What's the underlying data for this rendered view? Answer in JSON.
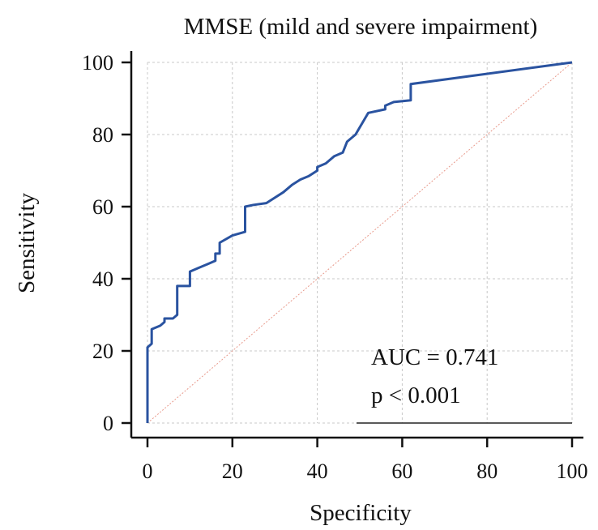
{
  "chart_data": {
    "type": "line",
    "title": "MMSE (mild and severe impairment)",
    "xlabel": "Specificity",
    "ylabel": "Sensitivity",
    "xlim": [
      0,
      100
    ],
    "ylim": [
      0,
      100
    ],
    "xticks": [
      0,
      20,
      40,
      60,
      80,
      100
    ],
    "yticks": [
      0,
      20,
      40,
      60,
      80,
      100
    ],
    "grid": true,
    "series": [
      {
        "name": "ROC curve",
        "color": "#2a53a0",
        "points": [
          [
            0,
            0
          ],
          [
            0,
            21
          ],
          [
            1,
            22
          ],
          [
            1,
            26
          ],
          [
            3,
            27
          ],
          [
            4,
            28
          ],
          [
            4,
            29
          ],
          [
            5,
            29
          ],
          [
            6,
            29
          ],
          [
            7,
            30
          ],
          [
            7,
            38
          ],
          [
            10,
            38
          ],
          [
            10,
            42
          ],
          [
            12,
            43
          ],
          [
            14,
            44
          ],
          [
            16,
            45
          ],
          [
            16,
            47
          ],
          [
            17,
            47
          ],
          [
            17,
            50
          ],
          [
            20,
            52
          ],
          [
            23,
            53
          ],
          [
            23,
            60
          ],
          [
            25,
            60.5
          ],
          [
            28,
            61
          ],
          [
            32,
            64
          ],
          [
            34,
            66
          ],
          [
            36,
            67.5
          ],
          [
            38,
            68.5
          ],
          [
            40,
            70
          ],
          [
            40,
            71
          ],
          [
            42,
            72
          ],
          [
            44,
            74
          ],
          [
            45,
            74.5
          ],
          [
            46,
            75
          ],
          [
            47,
            78
          ],
          [
            49,
            80
          ],
          [
            50,
            82
          ],
          [
            52,
            86
          ],
          [
            56,
            87
          ],
          [
            56,
            88
          ],
          [
            58,
            89
          ],
          [
            62,
            89.5
          ],
          [
            62,
            94
          ],
          [
            100,
            100
          ]
        ]
      },
      {
        "name": "Reference line",
        "color": "#e89a8c",
        "points": [
          [
            0,
            0
          ],
          [
            100,
            100
          ]
        ]
      }
    ],
    "annotations": [
      "AUC = 0.741",
      "p < 0.001"
    ]
  }
}
